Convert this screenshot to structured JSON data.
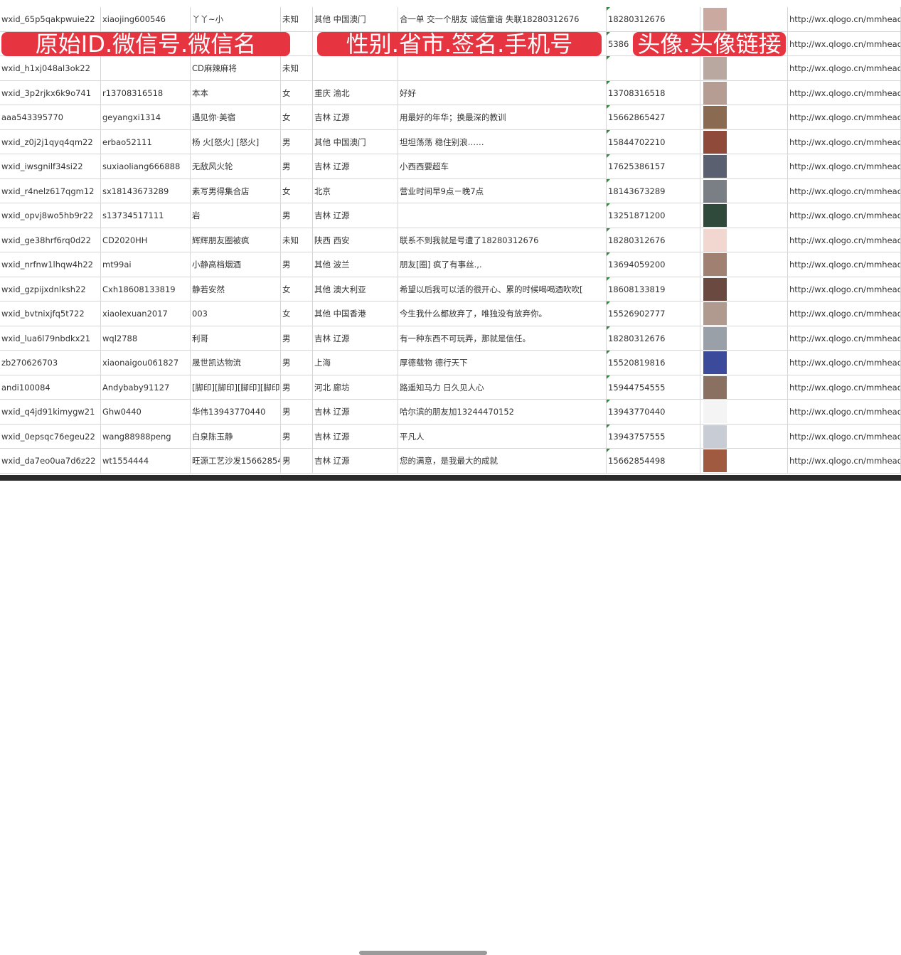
{
  "overlay_labels": [
    "原始ID.微信号.微信名",
    "性别.省市.签名.手机号",
    "头像.头像链接"
  ],
  "rows": [
    {
      "id": "wxid_65p5qakpwuie22",
      "wechat": "xiaojing600546",
      "name": "丫丫~小",
      "gender": "未知",
      "region": "其他 中国澳门",
      "signature": "合一单 交一个朋友 诚信童谙 失联18280312676",
      "phone": "18280312676",
      "avatar_color": "#c9a9a0",
      "link": "http://wx.qlogo.cn/mmhead"
    },
    {
      "id": "",
      "wechat": "",
      "name": "",
      "gender": "",
      "region": "",
      "signature": "",
      "phone": "5386",
      "avatar_color": "#6f86b8",
      "link": "http://wx.qlogo.cn/mmhead"
    },
    {
      "id": "wxid_h1xj048al3ok22",
      "wechat": "",
      "name": "CD麻辣麻将",
      "gender": "未知",
      "region": "",
      "signature": "",
      "phone": "",
      "avatar_color": "#b8a8a0",
      "link": "http://wx.qlogo.cn/mmhead"
    },
    {
      "id": "wxid_3p2rjkx6k9o741",
      "wechat": "r13708316518",
      "name": "本本",
      "gender": "女",
      "region": "重庆 渝北",
      "signature": "好好",
      "phone": "13708316518",
      "avatar_color": "#b59d93",
      "link": "http://wx.qlogo.cn/mmhead"
    },
    {
      "id": "aaa543395770",
      "wechat": "geyangxi1314",
      "name": "遇见你·美宿",
      "gender": "女",
      "region": "吉林 辽源",
      "signature": "用最好的年华；换最深的教训",
      "phone": "15662865427",
      "avatar_color": "#8a6a50",
      "link": "http://wx.qlogo.cn/mmhead"
    },
    {
      "id": "wxid_z0j2j1qyq4qm22",
      "wechat": "erbao52111",
      "name": "杨 火[怒火] [怒火]",
      "gender": "男",
      "region": "其他 中国澳门",
      "signature": "坦坦荡荡 稳住别浪……",
      "phone": "15844702210",
      "avatar_color": "#8f4a3a",
      "link": "http://wx.qlogo.cn/mmhead"
    },
    {
      "id": "wxid_iwsgnilf34si22",
      "wechat": "suxiaoliang666888",
      "name": "无敌风火轮",
      "gender": "男",
      "region": "吉林 辽源",
      "signature": "小西西要超车",
      "phone": "17625386157",
      "avatar_color": "#5a6070",
      "link": "http://wx.qlogo.cn/mmhead"
    },
    {
      "id": "wxid_r4nelz617qgm12",
      "wechat": "sx18143673289",
      "name": "素写男得集合店",
      "gender": "女",
      "region": "北京",
      "signature": "营业时间早9点－晚7点",
      "phone": "18143673289",
      "avatar_color": "#7a7f86",
      "link": "http://wx.qlogo.cn/mmhead"
    },
    {
      "id": "wxid_opvj8wo5hb9r22",
      "wechat": "s13734517111",
      "name": "岩",
      "gender": "男",
      "region": "吉林 辽源",
      "signature": "",
      "phone": "13251871200",
      "avatar_color": "#2f4a3a",
      "link": "http://wx.qlogo.cn/mmhead"
    },
    {
      "id": "wxid_ge38hrf6rq0d22",
      "wechat": "CD2020HH",
      "name": "辉辉朋友圈被疯",
      "gender": "未知",
      "region": "陕西 西安",
      "signature": "联系不到我就是号遭了18280312676",
      "phone": "18280312676",
      "avatar_color": "#f2d6d0",
      "link": "http://wx.qlogo.cn/mmhead"
    },
    {
      "id": "wxid_nrfnw1lhqw4h22",
      "wechat": "mt99ai",
      "name": "小静高档烟酒",
      "gender": "男",
      "region": "其他 波兰",
      "signature": "朋友[圈] 疯了有事丝.,.",
      "phone": "13694059200",
      "avatar_color": "#a08070",
      "link": "http://wx.qlogo.cn/mmhead"
    },
    {
      "id": "wxid_gzpijxdnlksh22",
      "wechat": "Cxh18608133819",
      "name": "静若安然",
      "gender": "女",
      "region": "其他 澳大利亚",
      "signature": "希望以后我可以活的很开心、累的时候喝喝酒吹吹[",
      "phone": "18608133819",
      "avatar_color": "#6a4a40",
      "link": "http://wx.qlogo.cn/mmhead"
    },
    {
      "id": "wxid_bvtnixjfq5t722",
      "wechat": "xiaolexuan2017",
      "name": "003",
      "gender": "女",
      "region": "其他 中国香港",
      "signature": "今生我什么都放弃了，唯独没有放弃你。",
      "phone": "15526902777",
      "avatar_color": "#b09a90",
      "link": "http://wx.qlogo.cn/mmhead"
    },
    {
      "id": "wxid_lua6l79nbdkx21",
      "wechat": "wql2788",
      "name": "利哥",
      "gender": "男",
      "region": "吉林 辽源",
      "signature": "有一种东西不可玩弄，那就是信任。",
      "phone": "18280312676",
      "avatar_color": "#9aa0a8",
      "link": "http://wx.qlogo.cn/mmhead"
    },
    {
      "id": "zb270626703",
      "wechat": "xiaonaigou061827",
      "name": "晟世凯达物流",
      "gender": "男",
      "region": "上海",
      "signature": "厚德载物 德行天下",
      "phone": "15520819816",
      "avatar_color": "#3b4a9a",
      "link": "http://wx.qlogo.cn/mmhead"
    },
    {
      "id": "andi100084",
      "wechat": "Andybaby91127",
      "name": "[脚印][脚印][脚印][脚印",
      "gender": "男",
      "region": "河北 廊坊",
      "signature": "路遥知马力 日久见人心",
      "phone": "15944754555",
      "avatar_color": "#8a7060",
      "link": "http://wx.qlogo.cn/mmhead"
    },
    {
      "id": "wxid_q4jd91kimygw21",
      "wechat": "Ghw0440",
      "name": "华伟13943770440",
      "gender": "男",
      "region": "吉林 辽源",
      "signature": "哈尔滨的朋友加13244470152",
      "phone": "13943770440",
      "avatar_color": "#f4f4f4",
      "link": "http://wx.qlogo.cn/mmhead"
    },
    {
      "id": "wxid_0epsqc76egeu22",
      "wechat": "wang88988peng",
      "name": "白泉陈玉静",
      "gender": "男",
      "region": "吉林 辽源",
      "signature": "平凡人",
      "phone": "13943757555",
      "avatar_color": "#c8ccd4",
      "link": "http://wx.qlogo.cn/mmhead"
    },
    {
      "id": "wxid_da7eo0ua7d6z22",
      "wechat": "wt1554444",
      "name": "旺源工艺沙发15662854",
      "gender": "男",
      "region": "吉林 辽源",
      "signature": "您的满意，是我最大的成就",
      "phone": "15662854498",
      "avatar_color": "#a05a40",
      "link": "http://wx.qlogo.cn/mmhead"
    }
  ],
  "colors": {
    "banner": "#e63440",
    "banner_text": "#ffffff",
    "grid": "#d6d6d6"
  }
}
